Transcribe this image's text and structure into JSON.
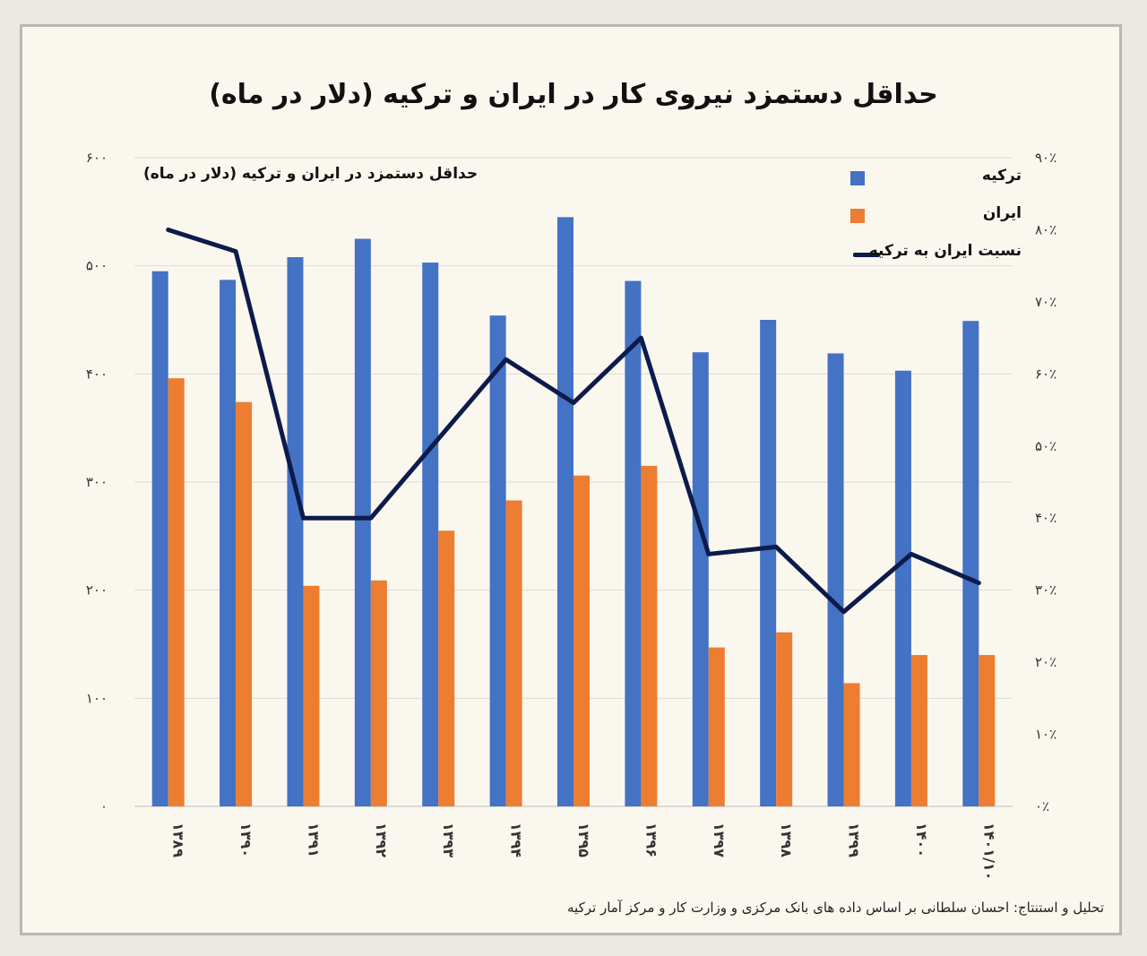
{
  "title": "حداقل دستمزد نیروی کار در ایران و ترکیه (دلار در ماه)",
  "source": "تحلیل و استنتاج: احسان سلطانی بر اساس داده های بانک مرکزی و وزارت کار و مرکز آمار ترکیه",
  "chart_data": {
    "type": "bar",
    "subtitle": "حداقل دستمزد در ایران و ترکیه (دلار در ماه)",
    "categories": [
      "۱۳۸۹",
      "۱۳۹۰",
      "۱۳۹۱",
      "۱۳۹۲",
      "۱۳۹۳",
      "۱۳۹۴",
      "۱۳۹۵",
      "۱۳۹۶",
      "۱۳۹۷",
      "۱۳۹۸",
      "۱۳۹۹",
      "۱۴۰۰",
      "۱۴۰۱/۱۰"
    ],
    "series": [
      {
        "name": "ترکیه",
        "axis": "left",
        "kind": "bar",
        "color": "#4472c4",
        "values": [
          495,
          487,
          508,
          525,
          503,
          454,
          545,
          486,
          420,
          450,
          419,
          403,
          449
        ]
      },
      {
        "name": "ایران",
        "axis": "left",
        "kind": "bar",
        "color": "#ed7d31",
        "values": [
          396,
          374,
          204,
          209,
          255,
          283,
          306,
          315,
          147,
          161,
          114,
          140,
          140
        ]
      },
      {
        "name": "نسبت ایران به ترکیه",
        "axis": "right",
        "kind": "line",
        "color": "#0d1b4b",
        "values": [
          80,
          77,
          40,
          40,
          51,
          62,
          56,
          65,
          35,
          36,
          27,
          35,
          31
        ]
      }
    ],
    "ylim": [
      0,
      600
    ],
    "yticks": [
      "۰",
      "۱۰۰",
      "۲۰۰",
      "۳۰۰",
      "۴۰۰",
      "۵۰۰",
      "۶۰۰"
    ],
    "y2lim": [
      0,
      90
    ],
    "y2ticks": [
      "۰٪",
      "۱۰٪",
      "۲۰٪",
      "۳۰٪",
      "۴۰٪",
      "۵۰٪",
      "۶۰٪",
      "۷۰٪",
      "۸۰٪",
      "۹۰٪"
    ],
    "grid": true,
    "legend": "top-right"
  }
}
